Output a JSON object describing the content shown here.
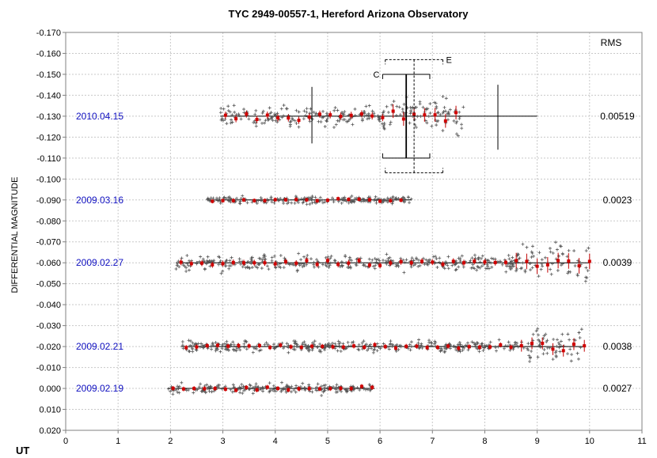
{
  "chart_data": {
    "type": "scatter",
    "title": "TYC 2949-00557-1, Hereford Arizona Observatory",
    "xlabel": "UT",
    "ylabel": "DIFFERENTIAL MAGNITUDE",
    "xlim": [
      0,
      11
    ],
    "ylim": [
      0.02,
      -0.17
    ],
    "x_ticks": [
      "0",
      "1",
      "2",
      "3",
      "4",
      "5",
      "6",
      "7",
      "8",
      "9",
      "10",
      "11"
    ],
    "y_ticks": [
      "-0.170",
      "-0.160",
      "-0.150",
      "-0.140",
      "-0.130",
      "-0.120",
      "-0.110",
      "-0.100",
      "-0.090",
      "-0.080",
      "-0.070",
      "-0.060",
      "-0.050",
      "-0.040",
      "-0.030",
      "-0.020",
      "-0.010",
      "0.000",
      "0.010",
      "0.020"
    ],
    "grid": true,
    "rms_header": "RMS",
    "series": [
      {
        "name": "2010.04.15",
        "rms": "0.00519",
        "level": -0.13,
        "x_range": [
          2.95,
          7.6
        ],
        "line_range": [
          2.95,
          9.0
        ]
      },
      {
        "name": "2009.03.16",
        "rms": "0.0023",
        "level": -0.09,
        "x_range": [
          2.7,
          6.6
        ],
        "line_range": [
          2.7,
          6.6
        ]
      },
      {
        "name": "2009.02.27",
        "rms": "0.0039",
        "level": -0.06,
        "x_range": [
          2.1,
          10.0
        ],
        "line_range": [
          2.1,
          10.0
        ]
      },
      {
        "name": "2009.02.21",
        "rms": "0.0038",
        "level": -0.02,
        "x_range": [
          2.2,
          9.9
        ],
        "line_range": [
          2.2,
          9.9
        ]
      },
      {
        "name": "2009.02.19",
        "rms": "0.0027",
        "level": 0.0,
        "x_range": [
          1.95,
          5.9
        ],
        "line_range": [
          1.95,
          5.9
        ]
      }
    ],
    "annotations": [
      {
        "label": "C",
        "x_center": 6.5,
        "y_top": -0.15,
        "y_bottom": -0.11,
        "half_width": 0.45,
        "style": "solid"
      },
      {
        "label": "E",
        "x_center": 6.65,
        "y_top": -0.157,
        "y_bottom": -0.103,
        "half_width": 0.55,
        "style": "dashed"
      }
    ],
    "event_markers": [
      {
        "x": 4.7,
        "y_top": -0.144,
        "y_bottom": -0.117
      },
      {
        "x": 8.25,
        "y_top": -0.145,
        "y_bottom": -0.114
      }
    ]
  }
}
